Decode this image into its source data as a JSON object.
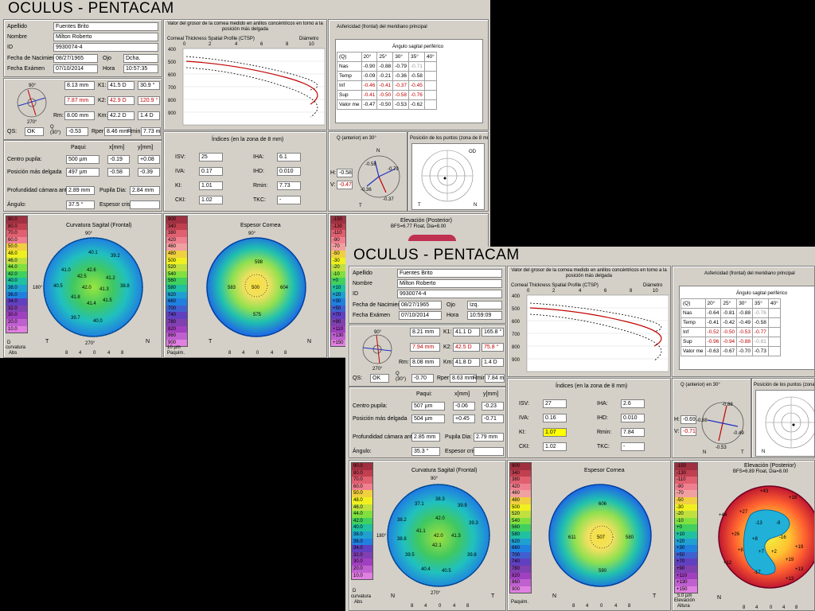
{
  "app": {
    "title": "OCULUS  -  PENTACAM"
  },
  "labels": {
    "apellido": "Apellido",
    "nombre": "Nombre",
    "id": "ID",
    "fecha_nac": "Fecha de Nacimient",
    "fecha_exam": "Fecha Exámen",
    "ojo": "Ojo",
    "hora": "Hora",
    "k1": "K1:",
    "k2": "K2:",
    "rm": "Rm:",
    "km": "Km:",
    "qs": "QS:",
    "q30": "Q (30°)",
    "rper": "Rper",
    "rmin": "Rmin",
    "paqui": "Paqui:",
    "xmm": "x[mm]",
    "ymm": "y[mm]",
    "centro_pupila": "Centro pupila:",
    "pos_delgada": "Posición más delgada",
    "prof_camara": "Profundidad cámara anter",
    "pupila_dia": "Pupila Dia:",
    "angulo": "Ángulo:",
    "espesor_cris": "Espesor crist",
    "ctsp_header": "Valor del grosor de la cornea medido en anillos concéntricos en torno a la posición más delgada",
    "ctsp_title": "Corneal Thickness Spatial Profile (CTSP)",
    "diametro": "Diámetro",
    "mm": "mm",
    "um": "µm",
    "asf_header": "Asfericidad (frontal) del meridiano principal",
    "angulo_sagital": "Ángulo sagital periférico",
    "indices_title": "Índices (en la zona de 8 mm)",
    "isv": "ISV:",
    "iva": "IVA:",
    "ki": "KI:",
    "cki": "CKI:",
    "iha": "IHA:",
    "ihd": "IHD:",
    "rmin_idx": "Rmin:",
    "tkc": "TKC:",
    "q_anterior": "Q (anterior) en 30°",
    "pos_puntos": "Posición de los puntos (zona de 8 mm)",
    "h": "H:",
    "v": "V:",
    "curv_title": "Curvatura Sagital (Frontal)",
    "esp_title": "Espesor Cornea",
    "elev_title": "Elevación (Posterior)",
    "curvatura": "curvatura",
    "abs": "Abs",
    "paquim": "Paquim.",
    "elevacion": "Elevación",
    "altura": "Altura",
    "N": "N",
    "T": "T",
    "D": "D",
    "OD": "OD"
  },
  "exam1": {
    "apellido": "Fuentes Brito",
    "nombre": "Milton Roberto",
    "id": "9930074-4",
    "fecha_nac": "08/27/1965",
    "ojo": "Dcha.",
    "fecha_exam": "07/10/2014",
    "hora": "10:57:35",
    "r1": "8.13 mm",
    "k1": "41.5 D",
    "a1": "30.9 °",
    "r2": "7.87 mm",
    "k2": "42.9 D",
    "a2": "120.9 °",
    "rm": "8.00 mm",
    "km": "42.2 D",
    "astig": "1.4 D",
    "qs": "OK",
    "q30": "-0.53",
    "rper": "8.46 mm",
    "rmin": "7.73 mm",
    "centro_paq": "500 µm",
    "centro_x": "-0.19",
    "centro_y": "+0.08",
    "delg_paq": "497 µm",
    "delg_x": "-0.58",
    "delg_y": "-0.39",
    "prof": "2.89 mm",
    "pupila": "2.84 mm",
    "angulo": "37.5 °",
    "espesor": "",
    "isv": "25",
    "iva": "0.17",
    "ki": "1.01",
    "cki": "1.02",
    "iha": "6.1",
    "ihd": "0.010",
    "rmin_idx": "7.73",
    "tkc": "-",
    "qh": "-0.58",
    "qv": "-0.47",
    "qc_top": "-0.58",
    "qc_right": "-0.79",
    "qc_left": "-0.36",
    "qc_bottom": "-0.37",
    "elev_sub": "BFS=6.77 Float, Dia=8.00",
    "curv_vals": [
      "40.1",
      "39.2",
      "41.0",
      "42.6",
      "42.5",
      "41.2",
      "40.5",
      "42.0",
      "38.8",
      "41.3",
      "41.8",
      "41.4",
      "41.5",
      "39.7",
      "40.0"
    ],
    "esp_vals": [
      "598",
      "583",
      "500",
      "604",
      "575"
    ],
    "asf": {
      "cols": [
        "(Q)",
        "20°",
        "25°",
        "30°",
        "35°",
        "40°"
      ],
      "rows": [
        {
          "name": "Nas",
          "v": [
            "-0.90",
            "-0.88",
            "-0.79",
            "-0.71",
            ""
          ]
        },
        {
          "name": "Temp",
          "v": [
            "-0.09",
            "-0.21",
            "-0.36",
            "-0.58",
            ""
          ]
        },
        {
          "name": "Inf",
          "v": [
            "-0.46",
            "-0.41",
            "-0.37",
            "-0.45",
            ""
          ]
        },
        {
          "name": "Sup",
          "v": [
            "-0.41",
            "-0.50",
            "-0.58",
            "-0.76",
            ""
          ]
        },
        {
          "name": "Valor me",
          "v": [
            "-0.47",
            "-0.50",
            "-0.53",
            "-0.62",
            ""
          ]
        }
      ]
    }
  },
  "exam2": {
    "apellido": "Fuentes Brito",
    "nombre": "Milton Roberto",
    "id": "9930074-4",
    "fecha_nac": "08/27/1965",
    "ojo": "Izq.",
    "fecha_exam": "07/10/2014",
    "hora": "10:59:09",
    "r1": "8.21 mm",
    "k1": "41.1 D",
    "a1": "165.8 °",
    "r2": "7.94 mm",
    "k2": "42.5 D",
    "a2": "75.8 °",
    "rm": "8.08 mm",
    "km": "41.8 D",
    "astig": "1.4 D",
    "qs": "OK",
    "q30": "-0.70",
    "rper": "8.63 mm",
    "rmin": "7.84 mm",
    "centro_paq": "507 µm",
    "centro_x": "-0.06",
    "centro_y": "-0.23",
    "delg_paq": "504 µm",
    "delg_x": "+0.45",
    "delg_y": "-0.71",
    "prof": "2.85 mm",
    "pupila": "2.79 mm",
    "angulo": "35.3 °",
    "espesor": "",
    "isv": "27",
    "iva": "0.16",
    "ki": "1.07",
    "cki": "1.02",
    "iha": "2.6",
    "ihd": "0.010",
    "rmin_idx": "7.84",
    "tkc": "-",
    "qh": "-0.69",
    "qv": "-0.71",
    "qc_top": "-0.88",
    "qc_right": "-0.49",
    "qc_left": "-0.88",
    "qc_bottom": "-0.53",
    "elev_sub": "BFS=6.89 Float, Dia=8.00",
    "curv_vals": [
      "38.3",
      "37.1",
      "39.9",
      "38.2",
      "42.0",
      "39.3",
      "41.1",
      "42.0",
      "41.3",
      "38.8",
      "42.1",
      "39.5",
      "39.8",
      "40.4",
      "40.5"
    ],
    "esp_vals": [
      "606",
      "611",
      "507",
      "580",
      "590"
    ],
    "elev_vals": [
      "+43",
      "+18",
      "+44",
      "+27",
      "-13",
      "-9",
      "+26",
      "+8",
      "-16",
      "+19",
      "+7",
      "+8",
      "+2",
      "+19",
      "+13",
      "-17",
      "+12",
      "+13"
    ],
    "asf": {
      "cols": [
        "(Q)",
        "20°",
        "25°",
        "30°",
        "35°",
        "40°"
      ],
      "rows": [
        {
          "name": "Nas",
          "v": [
            "-0.64",
            "-0.81",
            "-0.88",
            "-0.76",
            ""
          ]
        },
        {
          "name": "Temp",
          "v": [
            "-0.41",
            "-0.42",
            "-0.49",
            "-0.58",
            ""
          ]
        },
        {
          "name": "Inf",
          "v": [
            "-0.52",
            "-0.50",
            "-0.53",
            "-0.77",
            ""
          ]
        },
        {
          "name": "Sup",
          "v": [
            "-0.96",
            "-0.94",
            "-0.88",
            "-0.81",
            ""
          ]
        },
        {
          "name": "Valor me",
          "v": [
            "-0.63",
            "-0.67",
            "-0.70",
            "-0.73",
            ""
          ]
        }
      ]
    }
  },
  "colorbars": {
    "curv": [
      "90.0",
      "80.0",
      "70.0",
      "60.0",
      "50.0",
      "48.0",
      "46.0",
      "44.0",
      "42.0",
      "40.0",
      "38.0",
      "36.0",
      "34.0",
      "32.0",
      "30.0",
      "20.0",
      "10.0"
    ],
    "esp": [
      "900",
      "340",
      "380",
      "420",
      "460",
      "480",
      "500",
      "520",
      "540",
      "560",
      "580",
      "620",
      "660",
      "700",
      "740",
      "780",
      "820",
      "860",
      "900"
    ],
    "esp1": [
      "900",
      "340",
      "380",
      "420",
      "460",
      "480",
      "500",
      "520",
      "540",
      "560",
      "580",
      "620",
      "660",
      "700",
      "740",
      "780",
      "820",
      "860",
      "900"
    ],
    "elev": [
      "-150",
      "-130",
      "-110",
      "-90",
      "-70",
      "-50",
      "-30",
      "-20",
      "-10",
      "+0",
      "+10",
      "+20",
      "+30",
      "+50",
      "+70",
      "+90",
      "+110",
      "+130",
      "+150"
    ],
    "elev_unit": "5.0 µm",
    "esp_unit": "10 µm"
  },
  "ctsp_chart": {
    "x_ticks": [
      "0",
      "2",
      "4",
      "6",
      "8",
      "10"
    ],
    "y_ticks": [
      "400",
      "500",
      "600",
      "700",
      "800",
      "900"
    ]
  },
  "map_ticks": [
    "8",
    "4",
    "0",
    "4",
    "8"
  ],
  "map_ticks_y": [
    "8",
    "4",
    "0",
    "4",
    "8"
  ],
  "angles": [
    "90°",
    "60°",
    "30°",
    "120°",
    "150°",
    "180°",
    "210°",
    "240°",
    "270°",
    "300°",
    "330°"
  ],
  "colors": {
    "bg": "#d4d0c8",
    "accent_red": "#c00000",
    "highlight": "#ffff00"
  }
}
